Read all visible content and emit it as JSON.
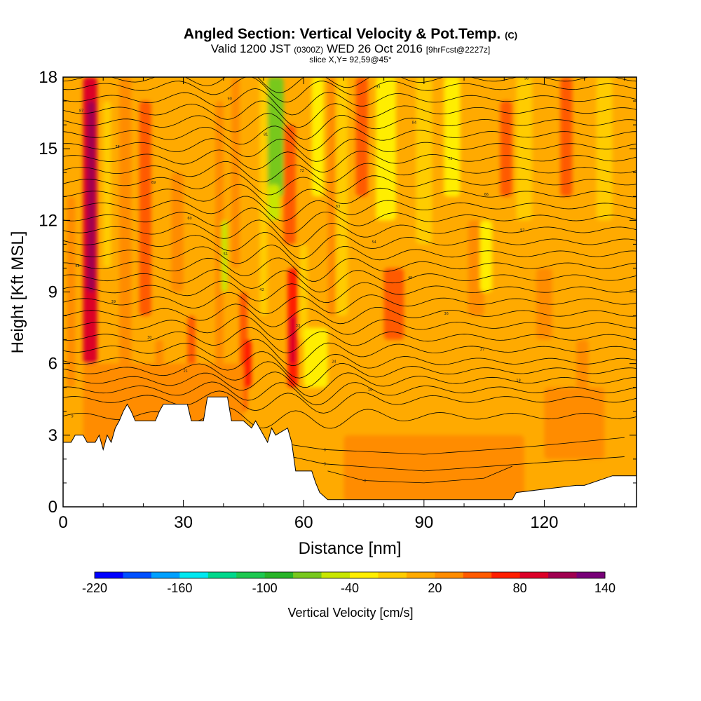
{
  "title": {
    "main": "Angled Section: Vertical Velocity & Pot.Temp.",
    "main_suffix": "(C)",
    "valid_prefix": "Valid 1200 JST",
    "valid_utc": "(0300Z)",
    "valid_date": "WED 26 Oct 2016",
    "forecast": "[9hrFcst@2227z]",
    "slice": "slice X,Y= 92,59@45°"
  },
  "chart_data": {
    "type": "heatmap",
    "xlabel": "Distance [nm]",
    "ylabel": "Height [Kft MSL]",
    "xlim": [
      0,
      143
    ],
    "ylim": [
      0,
      18
    ],
    "x_ticks": [
      {
        "value": 0,
        "label": "0"
      },
      {
        "value": 30,
        "label": "30"
      },
      {
        "value": 60,
        "label": "60"
      },
      {
        "value": 90,
        "label": "90"
      },
      {
        "value": 120,
        "label": "120"
      }
    ],
    "y_ticks": [
      {
        "value": 0,
        "label": "0"
      },
      {
        "value": 3,
        "label": "3"
      },
      {
        "value": 6,
        "label": "6"
      },
      {
        "value": 9,
        "label": "9"
      },
      {
        "value": 12,
        "label": "12"
      },
      {
        "value": 15,
        "label": "15"
      },
      {
        "value": 18,
        "label": "18"
      }
    ],
    "colorbar": {
      "title": "Vertical Velocity [cm/s]",
      "min": -220,
      "max": 140,
      "step": 20,
      "tick_labels": [
        {
          "value": -220,
          "label": "-220"
        },
        {
          "value": -160,
          "label": "-160"
        },
        {
          "value": -100,
          "label": "-100"
        },
        {
          "value": -40,
          "label": "-40"
        },
        {
          "value": 20,
          "label": "20"
        },
        {
          "value": 80,
          "label": "80"
        },
        {
          "value": 140,
          "label": "140"
        }
      ],
      "colors": [
        "#0000ff",
        "#0050ff",
        "#00a0ff",
        "#00e8f0",
        "#00d88c",
        "#1ec850",
        "#28b428",
        "#78c81e",
        "#c8e600",
        "#ffee00",
        "#ffcc00",
        "#ffaa00",
        "#ff8c00",
        "#ff5a00",
        "#ff1e00",
        "#dc0028",
        "#a00050",
        "#780078"
      ]
    },
    "velocity_bands": [
      {
        "x": [
          1,
          3
        ],
        "z": [
          5,
          13
        ],
        "w": 20
      },
      {
        "x": [
          5,
          8.5
        ],
        "z": [
          6,
          18
        ],
        "w": 80
      },
      {
        "x": [
          6,
          8
        ],
        "z": [
          9,
          17
        ],
        "w": 100
      },
      {
        "x": [
          10,
          12
        ],
        "z": [
          10,
          17
        ],
        "w": -20
      },
      {
        "x": [
          14,
          17
        ],
        "z": [
          4,
          18
        ],
        "w": 20
      },
      {
        "x": [
          19,
          22
        ],
        "z": [
          8,
          17
        ],
        "w": 40
      },
      {
        "x": [
          23,
          25
        ],
        "z": [
          4,
          7
        ],
        "w": 20
      },
      {
        "x": [
          27,
          30
        ],
        "z": [
          9,
          14
        ],
        "w": 20
      },
      {
        "x": [
          31,
          33
        ],
        "z": [
          4,
          8
        ],
        "w": 40
      },
      {
        "x": [
          38,
          40
        ],
        "z": [
          5,
          17
        ],
        "w": 20
      },
      {
        "x": [
          39.5,
          41
        ],
        "z": [
          9,
          12
        ],
        "w": -60
      },
      {
        "x": [
          42,
          44
        ],
        "z": [
          10,
          18
        ],
        "w": 20
      },
      {
        "x": [
          44,
          46
        ],
        "z": [
          4,
          9
        ],
        "w": 40
      },
      {
        "x": [
          45,
          47
        ],
        "z": [
          5,
          7
        ],
        "w": 60
      },
      {
        "x": [
          49,
          51
        ],
        "z": [
          8,
          18
        ],
        "w": -20
      },
      {
        "x": [
          51,
          55
        ],
        "z": [
          13,
          18
        ],
        "w": -80
      },
      {
        "x": [
          51,
          54
        ],
        "z": [
          12,
          13.5
        ],
        "w": -60
      },
      {
        "x": [
          55,
          58
        ],
        "z": [
          11,
          16
        ],
        "w": 40
      },
      {
        "x": [
          56,
          58.5
        ],
        "z": [
          5,
          10
        ],
        "w": 60
      },
      {
        "x": [
          56.5,
          58
        ],
        "z": [
          6,
          8
        ],
        "w": 80
      },
      {
        "x": [
          59,
          61
        ],
        "z": [
          7,
          11
        ],
        "w": -20
      },
      {
        "x": [
          60,
          66
        ],
        "z": [
          5,
          7.5
        ],
        "w": -40
      },
      {
        "x": [
          62,
          65
        ],
        "z": [
          13,
          18
        ],
        "w": -40
      },
      {
        "x": [
          66,
          68
        ],
        "z": [
          8,
          18
        ],
        "w": 20
      },
      {
        "x": [
          68,
          71
        ],
        "z": [
          8,
          18
        ],
        "w": -20
      },
      {
        "x": [
          73,
          76
        ],
        "z": [
          13,
          18
        ],
        "w": 40
      },
      {
        "x": [
          78,
          83
        ],
        "z": [
          12,
          18
        ],
        "w": -40
      },
      {
        "x": [
          80,
          85
        ],
        "z": [
          7,
          10
        ],
        "w": 40
      },
      {
        "x": [
          88,
          92
        ],
        "z": [
          11,
          18
        ],
        "w": -20
      },
      {
        "x": [
          95,
          99
        ],
        "z": [
          13,
          18
        ],
        "w": -40
      },
      {
        "x": [
          101,
          105
        ],
        "z": [
          8,
          12
        ],
        "w": 20
      },
      {
        "x": [
          104,
          107
        ],
        "z": [
          9,
          12
        ],
        "w": -40
      },
      {
        "x": [
          109,
          112
        ],
        "z": [
          13,
          17
        ],
        "w": 40
      },
      {
        "x": [
          113,
          117
        ],
        "z": [
          12,
          18
        ],
        "w": -20
      },
      {
        "x": [
          118,
          122
        ],
        "z": [
          7,
          10
        ],
        "w": 20
      },
      {
        "x": [
          124,
          127
        ],
        "z": [
          13,
          18
        ],
        "w": 40
      },
      {
        "x": [
          128,
          131
        ],
        "z": [
          2,
          7
        ],
        "w": 20
      },
      {
        "x": [
          133,
          137
        ],
        "z": [
          12,
          18
        ],
        "w": -20
      },
      {
        "x": [
          120,
          135
        ],
        "z": [
          2,
          5
        ],
        "w": 20
      },
      {
        "x": [
          5,
          45
        ],
        "z": [
          2,
          6
        ],
        "w": 20
      },
      {
        "x": [
          70,
          115
        ],
        "z": [
          0.2,
          3
        ],
        "w": 20
      }
    ],
    "terrain": [
      {
        "x": 0,
        "z": 2.7
      },
      {
        "x": 2,
        "z": 2.7
      },
      {
        "x": 3,
        "z": 3.0
      },
      {
        "x": 5,
        "z": 3.0
      },
      {
        "x": 6,
        "z": 2.7
      },
      {
        "x": 8,
        "z": 2.7
      },
      {
        "x": 9,
        "z": 3.0
      },
      {
        "x": 10,
        "z": 2.4
      },
      {
        "x": 11,
        "z": 3.0
      },
      {
        "x": 12,
        "z": 2.7
      },
      {
        "x": 13,
        "z": 3.3
      },
      {
        "x": 14,
        "z": 3.6
      },
      {
        "x": 15,
        "z": 4.0
      },
      {
        "x": 16,
        "z": 4.3
      },
      {
        "x": 17,
        "z": 4.0
      },
      {
        "x": 18,
        "z": 3.6
      },
      {
        "x": 23,
        "z": 3.6
      },
      {
        "x": 24,
        "z": 4.0
      },
      {
        "x": 25,
        "z": 4.3
      },
      {
        "x": 31,
        "z": 4.3
      },
      {
        "x": 32,
        "z": 3.6
      },
      {
        "x": 35,
        "z": 3.6
      },
      {
        "x": 36,
        "z": 4.6
      },
      {
        "x": 41,
        "z": 4.6
      },
      {
        "x": 42,
        "z": 3.6
      },
      {
        "x": 45,
        "z": 3.6
      },
      {
        "x": 47,
        "z": 3.3
      },
      {
        "x": 48,
        "z": 3.6
      },
      {
        "x": 50,
        "z": 3.0
      },
      {
        "x": 51,
        "z": 2.7
      },
      {
        "x": 52,
        "z": 3.3
      },
      {
        "x": 53,
        "z": 3.0
      },
      {
        "x": 56,
        "z": 3.3
      },
      {
        "x": 57,
        "z": 2.7
      },
      {
        "x": 58,
        "z": 1.5
      },
      {
        "x": 62,
        "z": 1.5
      },
      {
        "x": 63,
        "z": 1.0
      },
      {
        "x": 64,
        "z": 0.6
      },
      {
        "x": 66,
        "z": 0.3
      },
      {
        "x": 112,
        "z": 0.3
      },
      {
        "x": 113,
        "z": 0.6
      },
      {
        "x": 128,
        "z": 0.9
      },
      {
        "x": 130,
        "z": 0.9
      },
      {
        "x": 137,
        "z": 1.3
      },
      {
        "x": 143,
        "z": 1.3
      }
    ],
    "theta_contours": {
      "levels": [
        9,
        12,
        15,
        18,
        21,
        24,
        27,
        30,
        33,
        36,
        39,
        42,
        45,
        48,
        51,
        54,
        57,
        60,
        63,
        66,
        69,
        72,
        75,
        78,
        81,
        84,
        87,
        90,
        93,
        96
      ],
      "heights": [
        3.8,
        4.5,
        4.9,
        5.3,
        5.7,
        6.1,
        6.6,
        7.1,
        7.6,
        8.1,
        8.6,
        9.1,
        9.6,
        10.1,
        10.6,
        11.1,
        11.6,
        12.1,
        12.6,
        13.1,
        13.6,
        14.1,
        14.6,
        15.1,
        15.6,
        16.1,
        16.6,
        17.1,
        17.6,
        17.95
      ],
      "low_level_contours": [
        {
          "level": 3,
          "points": [
            [
              57,
              2.1
            ],
            [
              65,
              1.8
            ],
            [
              90,
              1.5
            ],
            [
              115,
              1.8
            ],
            [
              140,
              2.1
            ]
          ]
        },
        {
          "level": 6,
          "points": [
            [
              57,
              2.6
            ],
            [
              65,
              2.4
            ],
            [
              90,
              2.2
            ],
            [
              115,
              2.5
            ],
            [
              140,
              2.9
            ]
          ]
        },
        {
          "level": 0,
          "points": [
            [
              66,
              1.5
            ],
            [
              75,
              1.1
            ],
            [
              90,
              1.0
            ],
            [
              105,
              1.2
            ],
            [
              112,
              1.7
            ]
          ]
        }
      ]
    }
  }
}
